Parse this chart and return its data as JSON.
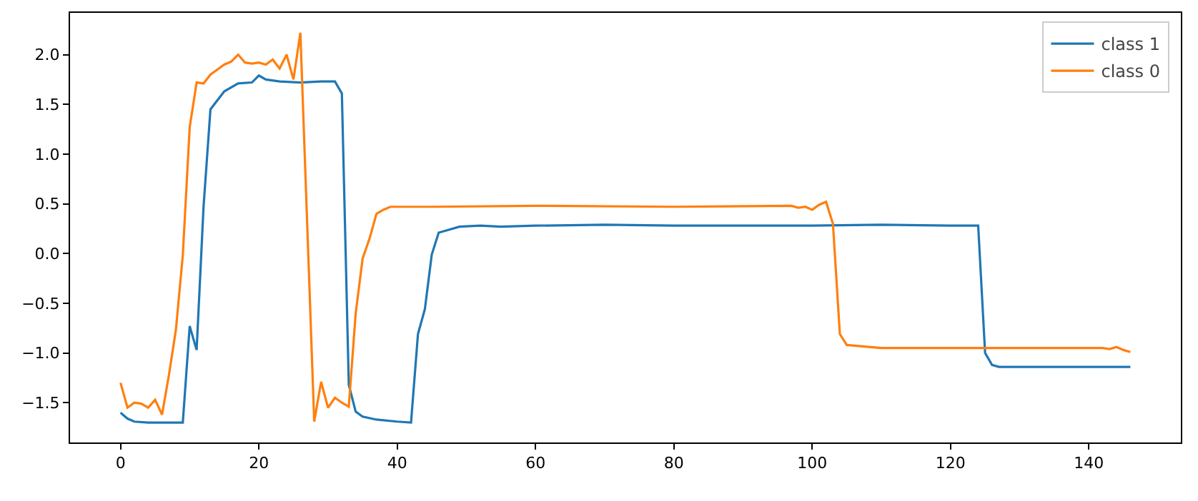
{
  "chart_data": {
    "type": "line",
    "xlim": [
      -7.3,
      153.3
    ],
    "ylim": [
      -1.9,
      2.42
    ],
    "xticks": [
      0,
      20,
      40,
      60,
      80,
      100,
      120,
      140
    ],
    "yticks": [
      {
        "value": -1.5,
        "label": "−1.5"
      },
      {
        "value": -1,
        "label": "−1.0"
      },
      {
        "value": -0.5,
        "label": "−0.5"
      },
      {
        "value": 0,
        "label": "0.0"
      },
      {
        "value": 0.5,
        "label": "0.5"
      },
      {
        "value": 1,
        "label": "1.0"
      },
      {
        "value": 1.5,
        "label": "1.5"
      },
      {
        "value": 2,
        "label": "2.0"
      }
    ],
    "grid": false,
    "legend": "top right",
    "marker": "none",
    "line_style": "solid",
    "series": [
      {
        "name": "class 1",
        "color": "#1f77b4",
        "x": [
          0,
          1,
          2,
          4,
          6,
          9,
          10,
          11,
          12,
          13,
          15,
          17,
          19,
          20,
          21,
          23,
          26,
          29,
          31,
          32,
          33,
          34,
          35,
          37,
          40,
          42,
          43,
          44,
          45,
          46,
          47,
          49,
          52,
          55,
          60,
          70,
          80,
          90,
          100,
          110,
          120,
          124,
          125,
          126,
          127,
          135,
          146
        ],
        "values": [
          -1.6,
          -1.66,
          -1.69,
          -1.7,
          -1.7,
          -1.7,
          -0.73,
          -0.97,
          0.47,
          1.45,
          1.63,
          1.71,
          1.72,
          1.79,
          1.75,
          1.73,
          1.72,
          1.73,
          1.73,
          1.61,
          -1.32,
          -1.59,
          -1.64,
          -1.67,
          -1.69,
          -1.7,
          -0.81,
          -0.56,
          -0.01,
          0.21,
          0.23,
          0.27,
          0.28,
          0.27,
          0.28,
          0.29,
          0.28,
          0.28,
          0.28,
          0.29,
          0.28,
          0.28,
          -1.0,
          -1.12,
          -1.14,
          -1.14,
          -1.14
        ]
      },
      {
        "name": "class 0",
        "color": "#ff7f0e",
        "x": [
          0,
          1,
          2,
          3,
          4,
          5,
          6,
          7,
          8,
          9,
          10,
          11,
          12,
          13,
          14,
          15,
          16,
          17,
          18,
          19,
          20,
          21,
          22,
          23,
          24,
          25,
          26,
          27,
          28,
          29,
          30,
          31,
          32,
          33,
          34,
          35,
          36,
          37,
          38,
          39,
          45,
          60,
          80,
          97,
          98,
          99,
          100,
          101,
          102,
          103,
          104,
          105,
          110,
          120,
          130,
          142,
          143,
          144,
          145,
          146
        ],
        "values": [
          -1.3,
          -1.55,
          -1.5,
          -1.51,
          -1.55,
          -1.47,
          -1.62,
          -1.22,
          -0.77,
          -0.02,
          1.27,
          1.72,
          1.71,
          1.8,
          1.85,
          1.9,
          1.93,
          2.0,
          1.92,
          1.91,
          1.92,
          1.9,
          1.95,
          1.86,
          2.0,
          1.75,
          2.22,
          0.27,
          -1.69,
          -1.29,
          -1.55,
          -1.45,
          -1.5,
          -1.54,
          -0.6,
          -0.05,
          0.15,
          0.4,
          0.44,
          0.47,
          0.47,
          0.48,
          0.47,
          0.48,
          0.46,
          0.47,
          0.44,
          0.49,
          0.52,
          0.3,
          -0.81,
          -0.92,
          -0.95,
          -0.95,
          -0.95,
          -0.95,
          -0.96,
          -0.94,
          -0.97,
          -0.99
        ]
      }
    ]
  }
}
